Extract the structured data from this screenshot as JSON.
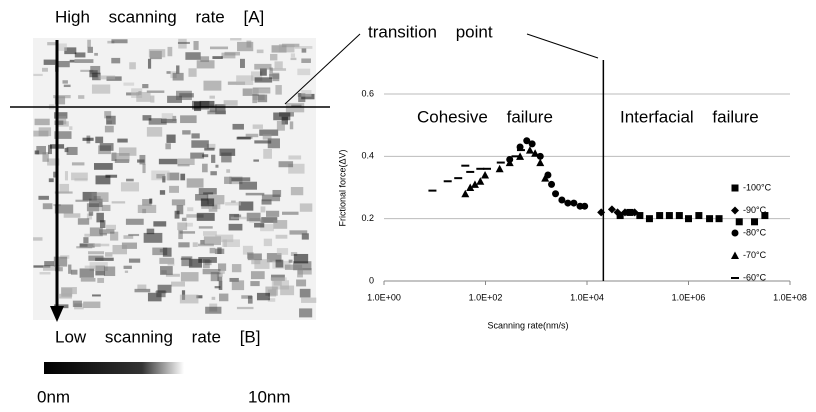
{
  "image": {
    "top_label": "High scanning rate [A]",
    "bottom_label": "Low scanning rate [B]",
    "scale_start": "0nm",
    "scale_end": "10nm"
  },
  "chart_data": {
    "type": "scatter",
    "x_label": "Scanning rate(nm/s)",
    "y_label": "Frictional force(ΔV)",
    "annotations": {
      "cohesive": "Cohesive failure",
      "interfacial": "Interfacial failure",
      "transition": "transition point"
    },
    "transition_x": 21000,
    "log_x": true,
    "grid": true,
    "legend": "right",
    "xlim": [
      1,
      100000000
    ],
    "xticks": [
      {
        "value": 1,
        "label": "1.0E+00"
      },
      {
        "value": 100,
        "label": "1.0E+02"
      },
      {
        "value": 10000,
        "label": "1.0E+04"
      },
      {
        "value": 1000000,
        "label": "1.0E+06"
      },
      {
        "value": 100000000,
        "label": "1.0E+08"
      }
    ],
    "ylim": [
      0,
      0.6
    ],
    "yticks": [
      0,
      0.2,
      0.4,
      0.6
    ],
    "series": [
      {
        "name": "-100°C",
        "color": "#000000",
        "marker": "square",
        "x": [
          45000,
          70000,
          110000,
          170000,
          270000,
          420000,
          660000,
          1000000,
          1600000,
          2600000,
          4000000,
          10000000,
          20000000,
          32000000
        ],
        "values": [
          0.21,
          0.22,
          0.21,
          0.2,
          0.21,
          0.21,
          0.21,
          0.2,
          0.21,
          0.2,
          0.2,
          0.19,
          0.19,
          0.21
        ]
      },
      {
        "name": "-90°C",
        "color": "#000000",
        "marker": "diamond",
        "x": [
          19000,
          31000,
          40000,
          56000,
          87000
        ],
        "values": [
          0.22,
          0.23,
          0.22,
          0.22,
          0.22
        ]
      },
      {
        "name": "-80°C",
        "color": "#000000",
        "marker": "circle",
        "x": [
          300,
          480,
          650,
          830,
          1200,
          1700,
          2000,
          2400,
          3200,
          4200,
          5500,
          7300,
          9000
        ],
        "values": [
          0.39,
          0.43,
          0.45,
          0.44,
          0.4,
          0.34,
          0.31,
          0.28,
          0.26,
          0.25,
          0.25,
          0.24,
          0.24
        ]
      },
      {
        "name": "-70°C",
        "color": "#000000",
        "marker": "triangle",
        "x": [
          40,
          50,
          62,
          79,
          98,
          190,
          300,
          480,
          750,
          950,
          1200,
          1500
        ],
        "values": [
          0.28,
          0.3,
          0.31,
          0.32,
          0.34,
          0.36,
          0.38,
          0.4,
          0.42,
          0.41,
          0.38,
          0.33
        ]
      },
      {
        "name": "-60°C",
        "color": "#000000",
        "marker": "dash",
        "x": [
          9,
          18,
          29,
          40,
          50,
          79,
          107,
          200,
          390,
          500
        ],
        "values": [
          0.29,
          0.32,
          0.33,
          0.37,
          0.35,
          0.36,
          0.36,
          0.38,
          0.4,
          0.42
        ]
      }
    ]
  }
}
